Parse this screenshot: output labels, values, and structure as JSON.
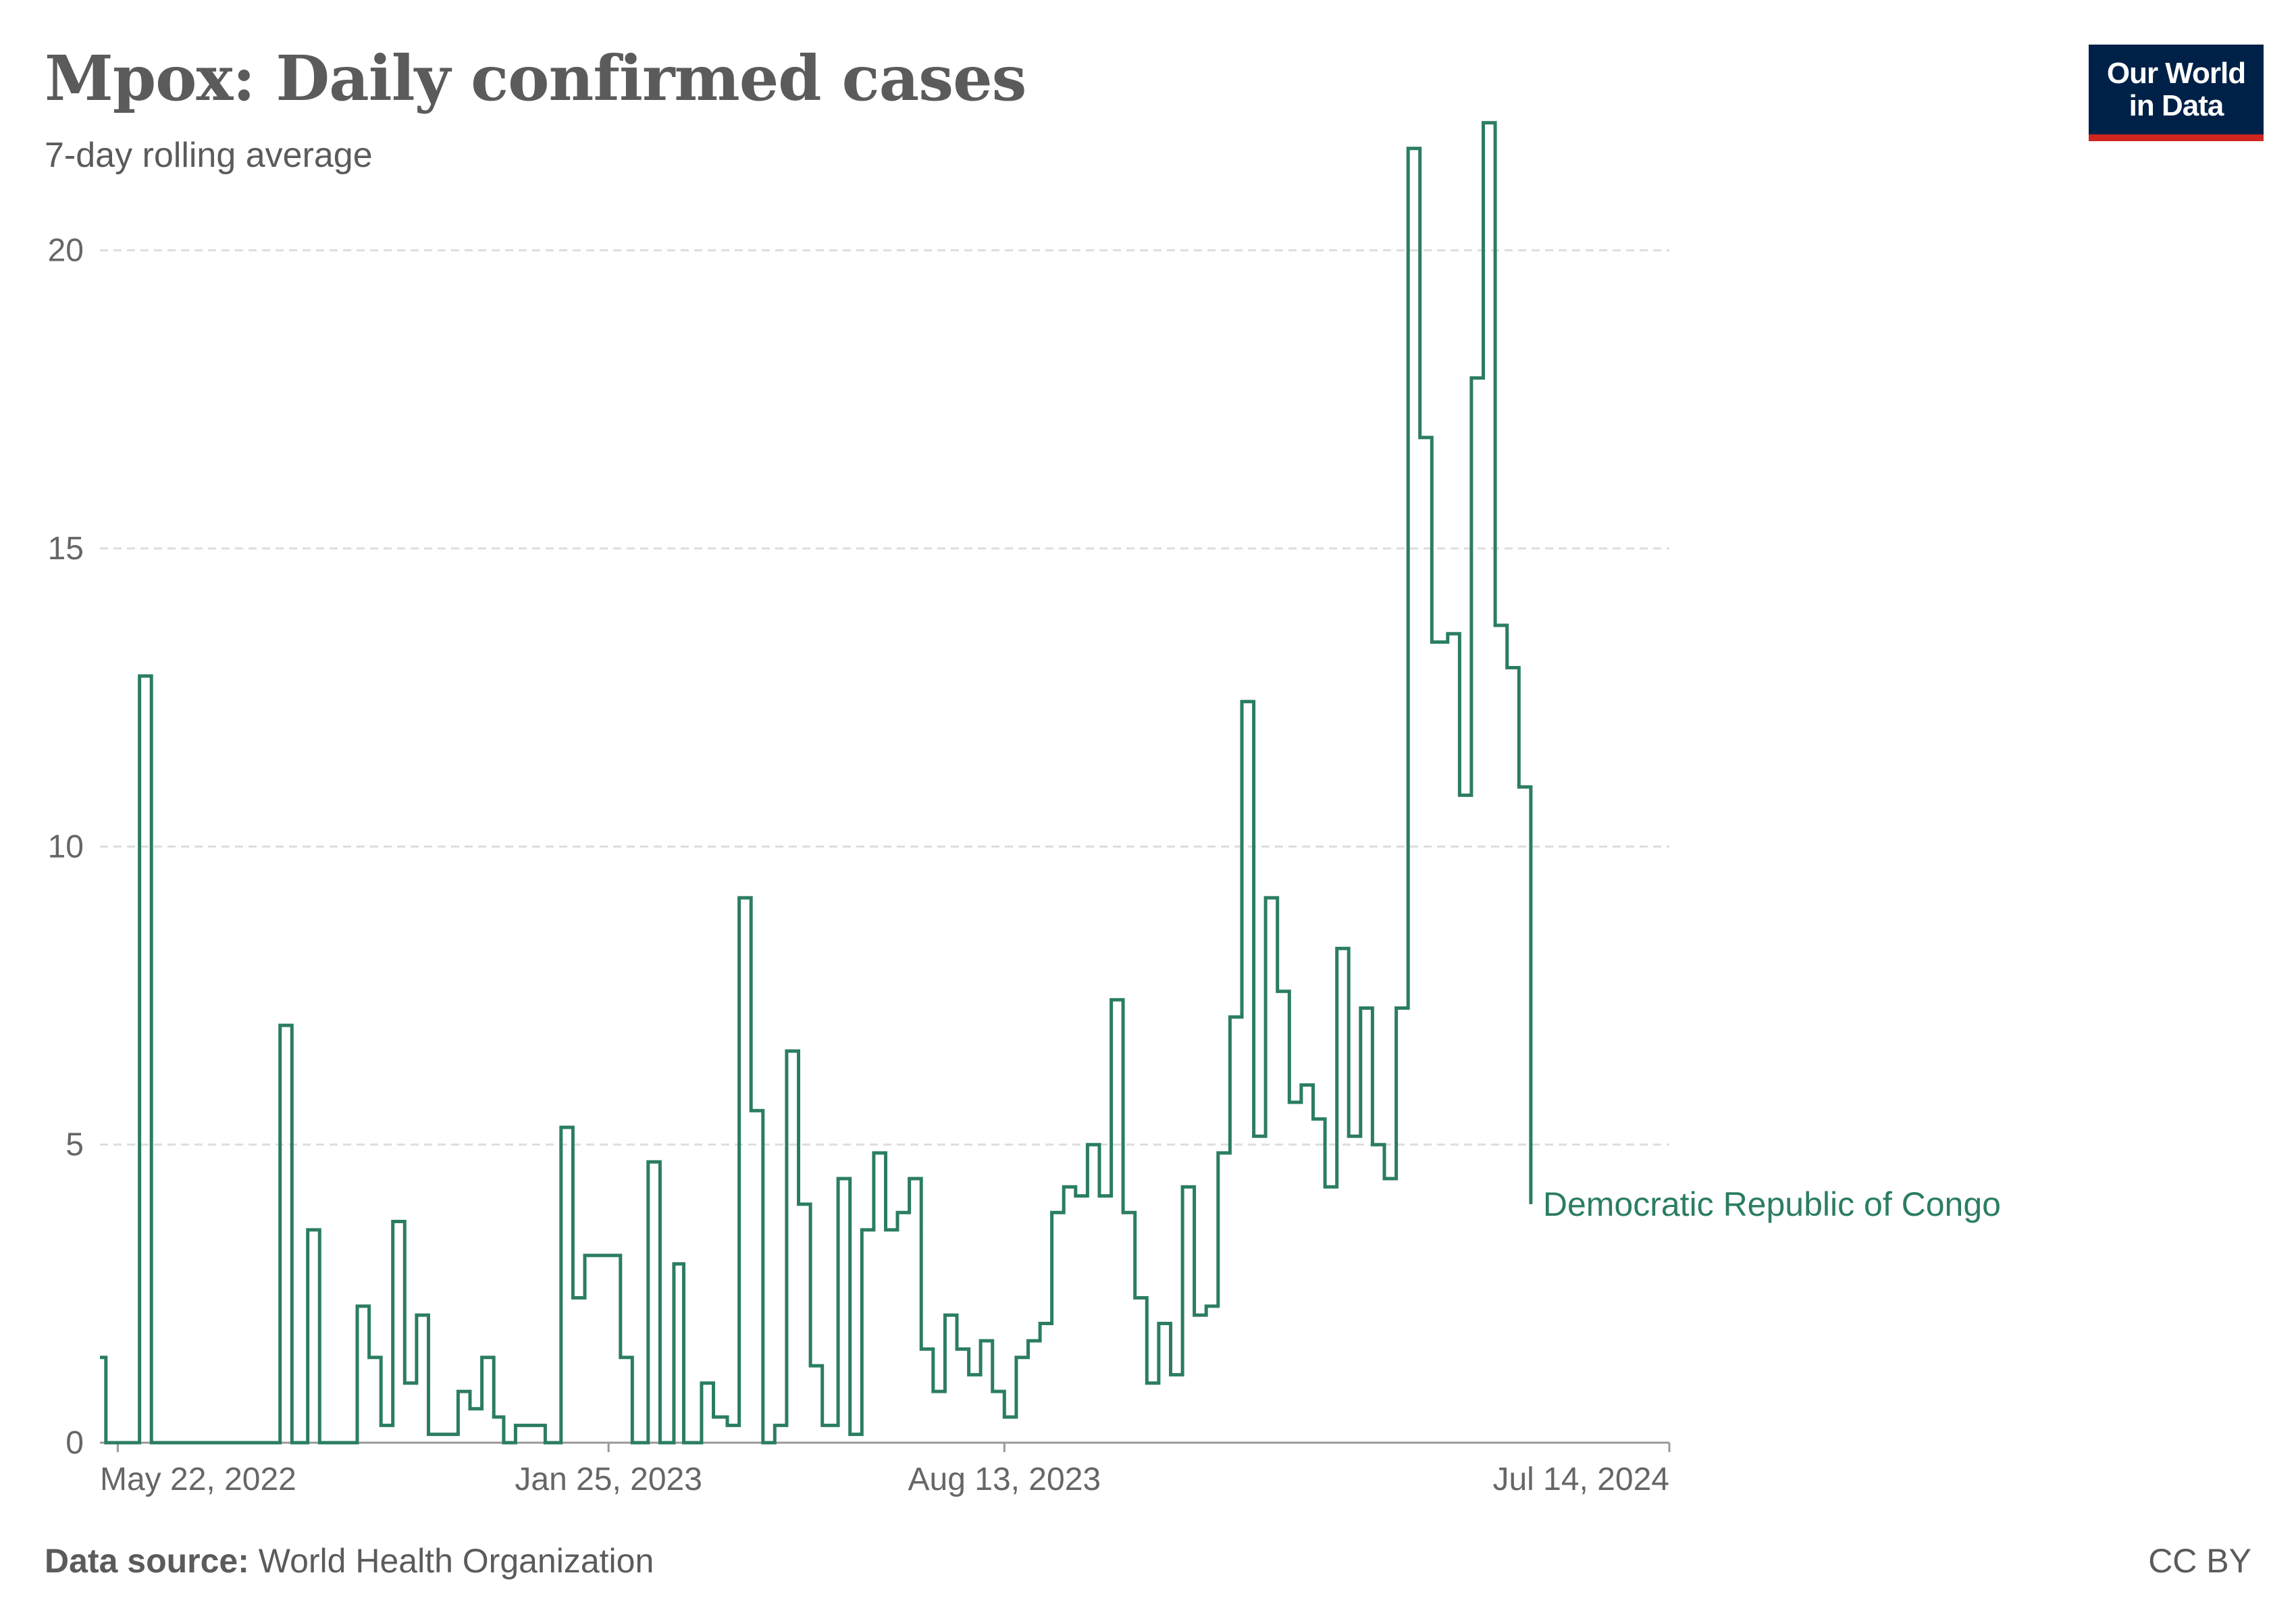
{
  "header": {
    "title": "Mpox: Daily confirmed cases",
    "subtitle": "7-day rolling average"
  },
  "logo": {
    "line1": "Our World",
    "line2": "in Data"
  },
  "footer": {
    "source_label": "Data source:",
    "source_value": "World Health Organization",
    "license": "CC BY"
  },
  "colors": {
    "series": "#2b7d62",
    "grid": "#dddddd",
    "text": "#5b5b5b",
    "logo_bg": "#002147",
    "logo_bar": "#ce261e"
  },
  "chart_data": {
    "type": "line",
    "step": true,
    "title": "Mpox: Daily confirmed cases",
    "subtitle": "7-day rolling average",
    "xlabel": "",
    "ylabel": "",
    "xlim": [
      "2022-05-13",
      "2024-07-14"
    ],
    "ylim": [
      0,
      22.5
    ],
    "y_ticks": [
      0,
      5,
      10,
      15,
      20
    ],
    "x_ticks": [
      {
        "date": "2022-05-22",
        "label": "May 22, 2022"
      },
      {
        "date": "2023-01-25",
        "label": "Jan 25, 2023"
      },
      {
        "date": "2023-08-13",
        "label": "Aug 13, 2023"
      },
      {
        "date": "2024-07-14",
        "label": "Jul 14, 2024"
      }
    ],
    "grid": "horizontal dashed",
    "series": [
      {
        "name": "Democratic Republic of Congo",
        "color": "#2b7d62",
        "points": [
          [
            "2022-05-13",
            1.43
          ],
          [
            "2022-05-16",
            0
          ],
          [
            "2022-06-02",
            12.86
          ],
          [
            "2022-06-08",
            0
          ],
          [
            "2022-08-12",
            7.0
          ],
          [
            "2022-08-18",
            0
          ],
          [
            "2022-08-26",
            3.57
          ],
          [
            "2022-09-01",
            0
          ],
          [
            "2022-09-20",
            2.29
          ],
          [
            "2022-09-26",
            1.43
          ],
          [
            "2022-10-02",
            0.29
          ],
          [
            "2022-10-08",
            3.71
          ],
          [
            "2022-10-14",
            1.0
          ],
          [
            "2022-10-20",
            2.14
          ],
          [
            "2022-10-26",
            0.14
          ],
          [
            "2022-11-10",
            0.86
          ],
          [
            "2022-11-16",
            0.57
          ],
          [
            "2022-11-22",
            1.43
          ],
          [
            "2022-11-28",
            0.43
          ],
          [
            "2022-12-03",
            0
          ],
          [
            "2022-12-09",
            0.29
          ],
          [
            "2022-12-24",
            0
          ],
          [
            "2023-01-01",
            5.29
          ],
          [
            "2023-01-07",
            2.43
          ],
          [
            "2023-01-13",
            3.14
          ],
          [
            "2023-01-31",
            1.43
          ],
          [
            "2023-02-06",
            0
          ],
          [
            "2023-02-14",
            4.71
          ],
          [
            "2023-02-20",
            0
          ],
          [
            "2023-02-27",
            3.0
          ],
          [
            "2023-03-04",
            0
          ],
          [
            "2023-03-13",
            1.0
          ],
          [
            "2023-03-19",
            0.43
          ],
          [
            "2023-03-26",
            0.29
          ],
          [
            "2023-04-01",
            9.14
          ],
          [
            "2023-04-07",
            5.57
          ],
          [
            "2023-04-13",
            0
          ],
          [
            "2023-04-19",
            0.29
          ],
          [
            "2023-04-25",
            6.57
          ],
          [
            "2023-05-01",
            4.0
          ],
          [
            "2023-05-07",
            1.29
          ],
          [
            "2023-05-13",
            0.29
          ],
          [
            "2023-05-21",
            4.43
          ],
          [
            "2023-05-27",
            0.14
          ],
          [
            "2023-06-02",
            3.57
          ],
          [
            "2023-06-08",
            4.86
          ],
          [
            "2023-06-14",
            3.57
          ],
          [
            "2023-06-20",
            3.86
          ],
          [
            "2023-06-26",
            4.43
          ],
          [
            "2023-07-02",
            1.57
          ],
          [
            "2023-07-08",
            0.86
          ],
          [
            "2023-07-14",
            2.14
          ],
          [
            "2023-07-20",
            1.57
          ],
          [
            "2023-07-26",
            1.14
          ],
          [
            "2023-08-01",
            1.71
          ],
          [
            "2023-08-07",
            0.86
          ],
          [
            "2023-08-13",
            0.43
          ],
          [
            "2023-08-19",
            1.43
          ],
          [
            "2023-08-25",
            1.71
          ],
          [
            "2023-08-31",
            2.0
          ],
          [
            "2023-09-06",
            3.86
          ],
          [
            "2023-09-12",
            4.29
          ],
          [
            "2023-09-18",
            4.14
          ],
          [
            "2023-09-24",
            5.0
          ],
          [
            "2023-09-30",
            4.14
          ],
          [
            "2023-10-06",
            7.43
          ],
          [
            "2023-10-12",
            3.86
          ],
          [
            "2023-10-18",
            2.43
          ],
          [
            "2023-10-24",
            1.0
          ],
          [
            "2023-10-30",
            2.0
          ],
          [
            "2023-11-05",
            1.14
          ],
          [
            "2023-11-11",
            4.29
          ],
          [
            "2023-11-17",
            2.14
          ],
          [
            "2023-11-23",
            2.29
          ],
          [
            "2023-11-29",
            4.86
          ],
          [
            "2023-12-05",
            7.14
          ],
          [
            "2023-12-11",
            12.43
          ],
          [
            "2023-12-17",
            5.14
          ],
          [
            "2023-12-23",
            9.14
          ],
          [
            "2023-12-29",
            7.57
          ],
          [
            "2024-01-04",
            5.71
          ],
          [
            "2024-01-10",
            6.0
          ],
          [
            "2024-01-16",
            5.43
          ],
          [
            "2024-01-22",
            4.29
          ],
          [
            "2024-01-28",
            8.29
          ],
          [
            "2024-02-03",
            5.14
          ],
          [
            "2024-02-09",
            7.29
          ],
          [
            "2024-02-15",
            5.0
          ],
          [
            "2024-02-21",
            4.43
          ],
          [
            "2024-02-27",
            7.29
          ],
          [
            "2024-03-04",
            21.71
          ],
          [
            "2024-03-10",
            16.86
          ],
          [
            "2024-03-16",
            13.43
          ],
          [
            "2024-03-24",
            13.57
          ],
          [
            "2024-03-30",
            10.86
          ],
          [
            "2024-04-05",
            17.86
          ],
          [
            "2024-04-11",
            22.14
          ],
          [
            "2024-04-17",
            13.71
          ],
          [
            "2024-04-23",
            13.0
          ],
          [
            "2024-04-29",
            11.0
          ],
          [
            "2024-05-05",
            4.0
          ]
        ]
      }
    ]
  }
}
